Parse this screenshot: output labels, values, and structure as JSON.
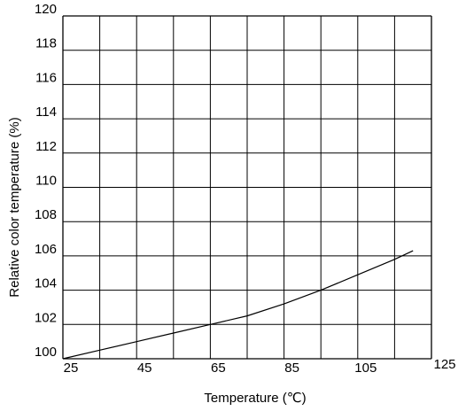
{
  "chart_data": {
    "type": "line",
    "title": "",
    "xlabel": "Temperature (℃)",
    "ylabel": "Relative color temperature  (%)",
    "xlim": [
      25,
      125
    ],
    "ylim": [
      100,
      120
    ],
    "x_ticks": [
      25,
      45,
      65,
      85,
      105,
      125
    ],
    "y_ticks": [
      100,
      102,
      104,
      106,
      108,
      110,
      112,
      114,
      116,
      118,
      120
    ],
    "grid": true,
    "legend": "none",
    "line_color": "#000000",
    "grid_color": "#000000",
    "series": [
      {
        "x": [
          25,
          35,
          45,
          55,
          65,
          75,
          85,
          95,
          105,
          115,
          120
        ],
        "values": [
          100.0,
          100.5,
          101.0,
          101.5,
          102.0,
          102.5,
          103.2,
          104.0,
          104.9,
          105.8,
          106.3
        ]
      }
    ]
  }
}
